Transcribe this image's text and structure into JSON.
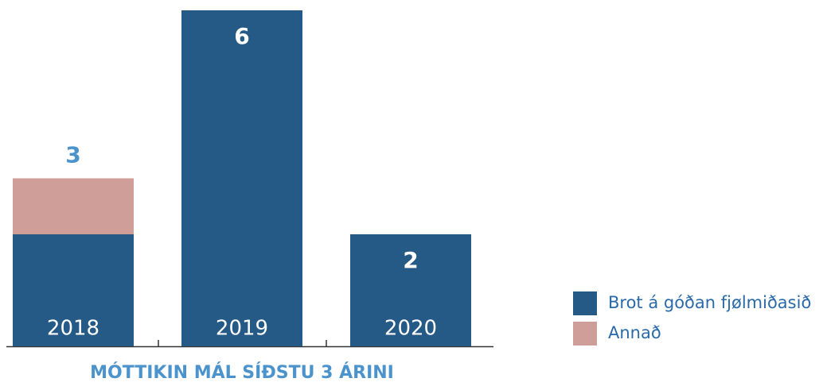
{
  "chart_data": {
    "type": "stacked_bar",
    "title": "MÓTTIKIN MÁL SÍÐSTU 3 ÁRINI",
    "categories": [
      "2018",
      "2019",
      "2020"
    ],
    "series": [
      {
        "name": "Brot á góðan fjølmiðasið",
        "color": "#245a85",
        "values": [
          2,
          6,
          2
        ]
      },
      {
        "name": "Annað",
        "color": "#d09e99",
        "values": [
          1,
          0,
          0
        ]
      }
    ],
    "totals": [
      3,
      6,
      2
    ],
    "ylim": [
      0,
      6
    ],
    "legend": "right"
  }
}
